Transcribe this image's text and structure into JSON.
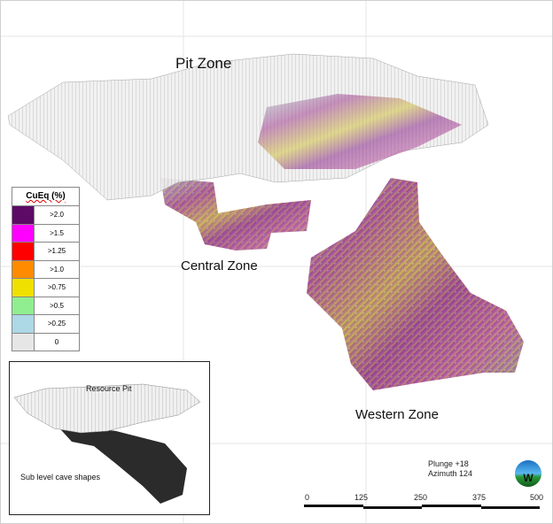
{
  "labels": {
    "pit_zone": "Pit Zone",
    "central_zone": "Central Zone",
    "western_zone": "Western Zone"
  },
  "legend": {
    "title": "CuEq (%)",
    "items": [
      {
        "label": ">2.0",
        "color": "#5c0a66"
      },
      {
        "label": ">1.5",
        "color": "#ff00ff"
      },
      {
        "label": ">1.25",
        "color": "#ff0000"
      },
      {
        "label": ">1.0",
        "color": "#ff8c00"
      },
      {
        "label": ">0.75",
        "color": "#f0e000"
      },
      {
        "label": ">0.5",
        "color": "#90ee90"
      },
      {
        "label": ">0.25",
        "color": "#add8e6"
      },
      {
        "label": "0",
        "color": "#e6e6e6"
      }
    ]
  },
  "inset": {
    "resource_pit": "Resource Pit",
    "sub_level": "Sub level cave shapes"
  },
  "view": {
    "plunge": "Plunge +18",
    "azimuth": "Azimuth 124",
    "compass_letters": "W"
  },
  "scale": {
    "ticks": [
      "0",
      "125",
      "250",
      "375",
      "500"
    ]
  }
}
